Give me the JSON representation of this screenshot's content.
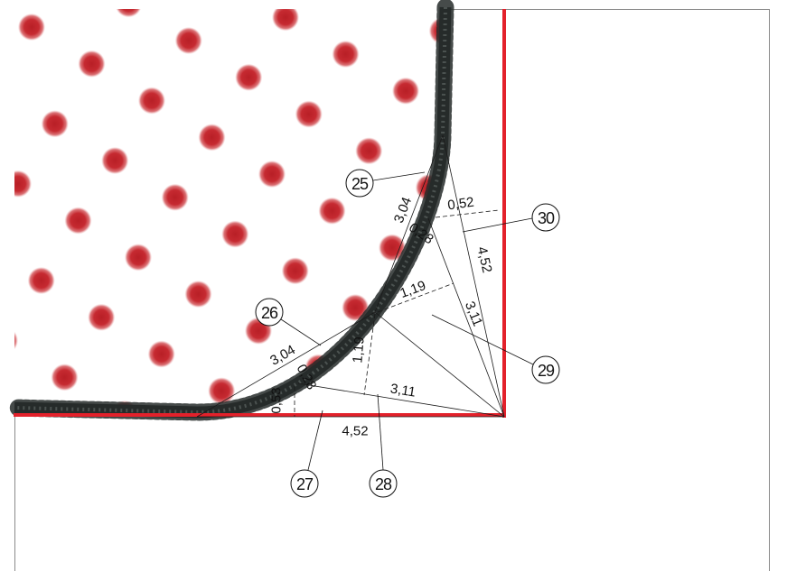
{
  "colors": {
    "border": "#e3212b",
    "seam": "#262b2a",
    "dots": "#c4262c",
    "fabric_background": "#ffffff"
  },
  "callouts": [
    "25",
    "26",
    "27",
    "28",
    "29",
    "30"
  ],
  "measurements": {
    "upper_chord": "3,04",
    "upper_offset": "0,52",
    "upper_sagitta": "0,28",
    "right_tangent": "4,52",
    "right_height": "1,19",
    "upper_radius": "3,11",
    "lower_chord": "3,04",
    "lower_sagitta": "0,28",
    "lower_height": "1,19",
    "lower_radius": "3,11",
    "lower_offset": "0,53",
    "bottom_tangent": "4,52"
  }
}
